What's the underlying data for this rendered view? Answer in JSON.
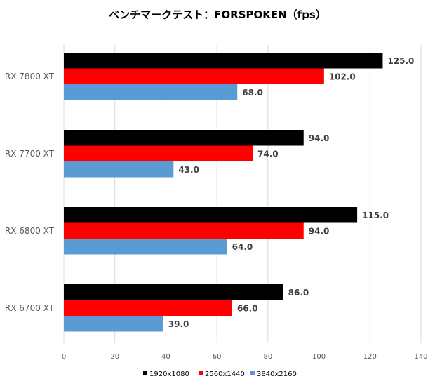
{
  "chart_data": {
    "type": "bar",
    "orientation": "horizontal",
    "title": "ベンチマークテスト：FORSPOKEN（fps）",
    "categories": [
      "RX 7800 XT",
      "RX 7700 XT",
      "RX 6800 XT",
      "RX 6700 XT"
    ],
    "series": [
      {
        "name": "1920x1080",
        "color": "#000000",
        "values": [
          125.0,
          94.0,
          115.0,
          86.0
        ],
        "labels": [
          "125.0",
          "94.0",
          "115.0",
          "86.0"
        ]
      },
      {
        "name": "2560x1440",
        "color": "#ff0000",
        "values": [
          102.0,
          74.0,
          94.0,
          66.0
        ],
        "labels": [
          "102.0",
          "74.0",
          "94.0",
          "66.0"
        ]
      },
      {
        "name": "3840x2160",
        "color": "#5b9bd5",
        "values": [
          68.0,
          43.0,
          64.0,
          39.0
        ],
        "labels": [
          "68.0",
          "43.0",
          "64.0",
          "39.0"
        ]
      }
    ],
    "xlim": [
      0,
      140
    ],
    "xticks": [
      "0",
      "20",
      "40",
      "60",
      "80",
      "100",
      "120",
      "140"
    ],
    "grid": true,
    "legend": "bottom",
    "xlabel": "",
    "ylabel": ""
  }
}
